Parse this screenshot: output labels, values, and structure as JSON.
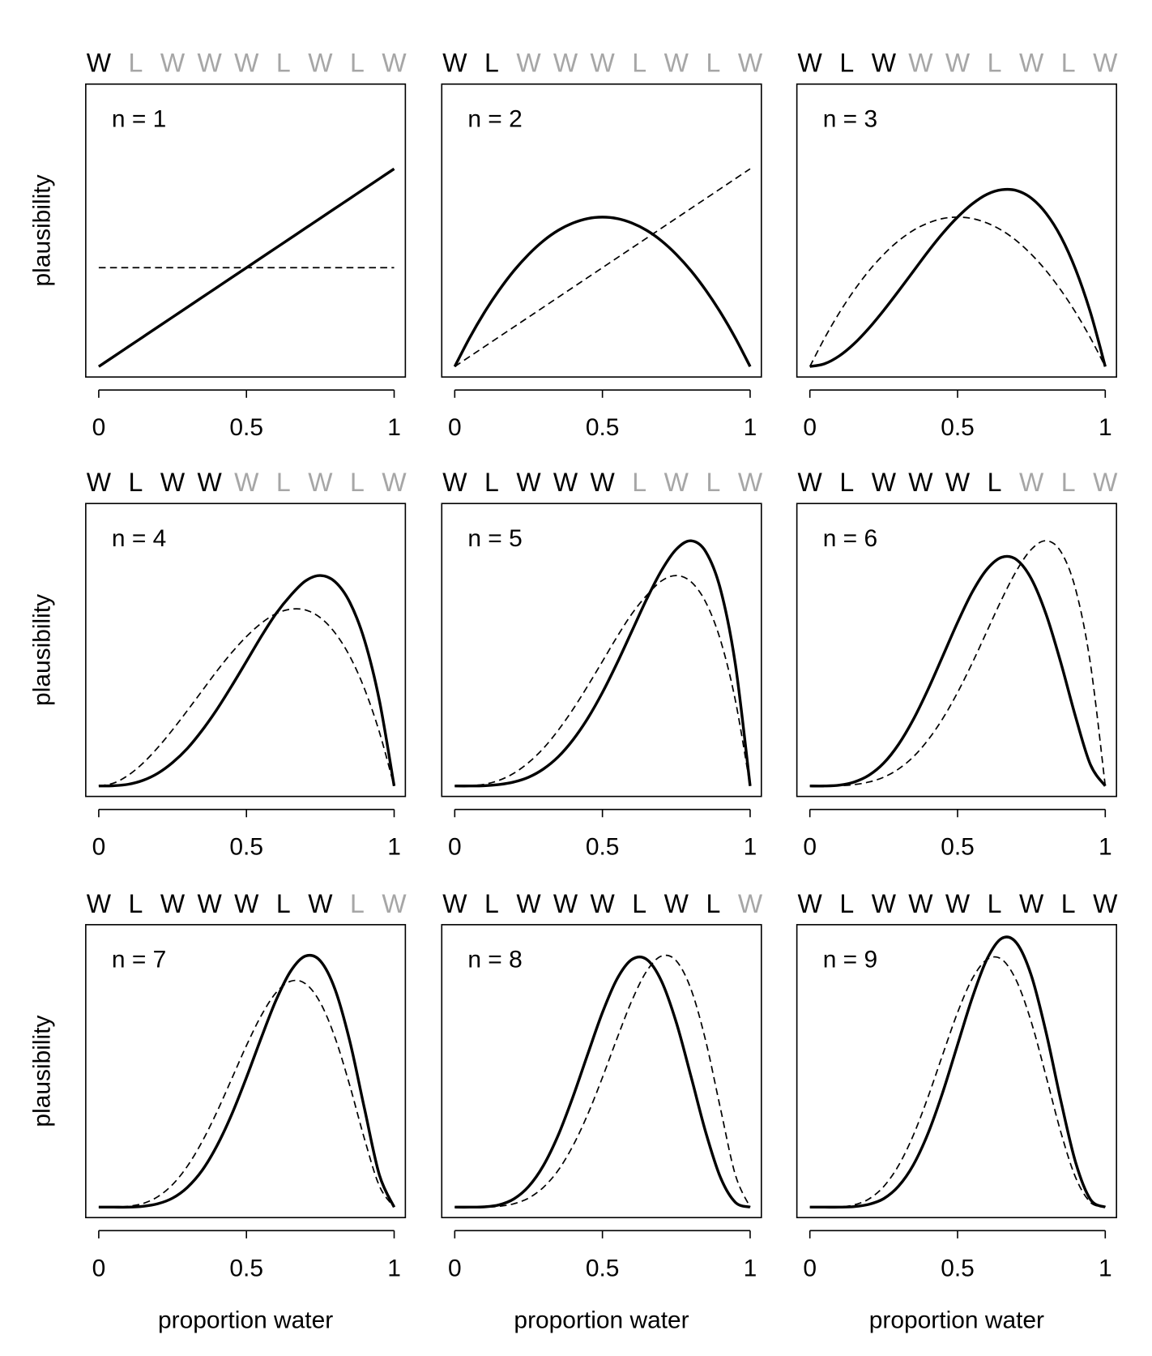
{
  "chart_data": [
    {
      "type": "line",
      "title": "n = 1",
      "ylabel": "plausibility",
      "sequence": [
        "W",
        "L",
        "W",
        "W",
        "W",
        "L",
        "W",
        "L",
        "W"
      ],
      "sequence_colors": [
        "#000000",
        "#a6a6a6",
        "#a6a6a6",
        "#a6a6a6",
        "#a6a6a6",
        "#a6a6a6",
        "#a6a6a6",
        "#a6a6a6",
        "#a6a6a6"
      ],
      "x": [
        0,
        0.05,
        0.1,
        0.15,
        0.2,
        0.25,
        0.3,
        0.35,
        0.4,
        0.45,
        0.5,
        0.55,
        0.6,
        0.65,
        0.7,
        0.75,
        0.8,
        0.85,
        0.9,
        0.95,
        1
      ],
      "xlim": [
        -0.044,
        1.038
      ],
      "xticks": [
        0,
        0.5,
        1
      ],
      "ylim": [
        -0.037,
        1.0
      ],
      "series": [
        {
          "color": "#000000",
          "style": "solid",
          "values": [
            0,
            0.035,
            0.07,
            0.105,
            0.14,
            0.175,
            0.21,
            0.245,
            0.28,
            0.315,
            0.35,
            0.385,
            0.42,
            0.455,
            0.49,
            0.525,
            0.56,
            0.595,
            0.63,
            0.665,
            0.7
          ]
        },
        {
          "color": "#000000",
          "style": "dashed",
          "values": [
            0.35,
            0.35,
            0.35,
            0.35,
            0.35,
            0.35,
            0.35,
            0.35,
            0.35,
            0.35,
            0.35,
            0.35,
            0.35,
            0.35,
            0.35,
            0.35,
            0.35,
            0.35,
            0.35,
            0.35,
            0.35
          ]
        }
      ]
    },
    {
      "type": "line",
      "title": "n = 2",
      "sequence": [
        "W",
        "L",
        "W",
        "W",
        "W",
        "L",
        "W",
        "L",
        "W"
      ],
      "sequence_colors": [
        "#000000",
        "#000000",
        "#a6a6a6",
        "#a6a6a6",
        "#a6a6a6",
        "#a6a6a6",
        "#a6a6a6",
        "#a6a6a6",
        "#a6a6a6"
      ],
      "x": [
        0,
        0.05,
        0.1,
        0.15,
        0.2,
        0.25,
        0.3,
        0.35,
        0.4,
        0.45,
        0.5,
        0.55,
        0.6,
        0.65,
        0.7,
        0.75,
        0.8,
        0.85,
        0.9,
        0.95,
        1
      ],
      "xlim": [
        -0.044,
        1.038
      ],
      "xticks": [
        0,
        0.5,
        1
      ],
      "ylim": [
        -0.037,
        1.0
      ],
      "series": [
        {
          "color": "#000000",
          "style": "solid",
          "values": [
            0,
            0.101,
            0.191,
            0.27,
            0.339,
            0.397,
            0.445,
            0.482,
            0.508,
            0.524,
            0.529,
            0.524,
            0.508,
            0.482,
            0.445,
            0.397,
            0.339,
            0.27,
            0.191,
            0.101,
            0
          ]
        },
        {
          "color": "#000000",
          "style": "dashed",
          "values": [
            0,
            0.035,
            0.07,
            0.105,
            0.14,
            0.175,
            0.21,
            0.245,
            0.28,
            0.315,
            0.35,
            0.385,
            0.42,
            0.455,
            0.49,
            0.525,
            0.56,
            0.595,
            0.63,
            0.665,
            0.7
          ]
        }
      ]
    },
    {
      "type": "line",
      "title": "n = 3",
      "sequence": [
        "W",
        "L",
        "W",
        "W",
        "W",
        "L",
        "W",
        "L",
        "W"
      ],
      "sequence_colors": [
        "#000000",
        "#000000",
        "#000000",
        "#a6a6a6",
        "#a6a6a6",
        "#a6a6a6",
        "#a6a6a6",
        "#a6a6a6",
        "#a6a6a6"
      ],
      "x": [
        0,
        0.05,
        0.1,
        0.15,
        0.2,
        0.25,
        0.3,
        0.35,
        0.4,
        0.45,
        0.5,
        0.55,
        0.6,
        0.65,
        0.7,
        0.75,
        0.8,
        0.85,
        0.9,
        0.95,
        1
      ],
      "xlim": [
        -0.044,
        1.038
      ],
      "xticks": [
        0,
        0.5,
        1
      ],
      "ylim": [
        -0.037,
        1.0
      ],
      "series": [
        {
          "color": "#000000",
          "style": "solid",
          "values": [
            0,
            0.01,
            0.038,
            0.081,
            0.136,
            0.199,
            0.267,
            0.337,
            0.407,
            0.472,
            0.529,
            0.576,
            0.61,
            0.626,
            0.623,
            0.596,
            0.542,
            0.459,
            0.343,
            0.191,
            0
          ]
        },
        {
          "color": "#000000",
          "style": "dashed",
          "values": [
            0,
            0.101,
            0.191,
            0.27,
            0.339,
            0.397,
            0.445,
            0.482,
            0.508,
            0.524,
            0.529,
            0.524,
            0.508,
            0.482,
            0.445,
            0.397,
            0.339,
            0.27,
            0.191,
            0.101,
            0
          ]
        }
      ]
    },
    {
      "type": "line",
      "title": "n = 4",
      "ylabel": "plausibility",
      "sequence": [
        "W",
        "L",
        "W",
        "W",
        "W",
        "L",
        "W",
        "L",
        "W"
      ],
      "sequence_colors": [
        "#000000",
        "#000000",
        "#000000",
        "#000000",
        "#a6a6a6",
        "#a6a6a6",
        "#a6a6a6",
        "#a6a6a6",
        "#a6a6a6"
      ],
      "x": [
        0,
        0.05,
        0.1,
        0.15,
        0.2,
        0.25,
        0.3,
        0.35,
        0.4,
        0.45,
        0.5,
        0.55,
        0.6,
        0.65,
        0.7,
        0.75,
        0.8,
        0.85,
        0.9,
        0.95,
        1
      ],
      "xlim": [
        -0.044,
        1.038
      ],
      "xticks": [
        0,
        0.5,
        1
      ],
      "ylim": [
        -0.037,
        1.0
      ],
      "series": [
        {
          "color": "#000000",
          "style": "solid",
          "values": [
            0,
            0.001,
            0.006,
            0.02,
            0.045,
            0.083,
            0.133,
            0.197,
            0.271,
            0.354,
            0.441,
            0.529,
            0.61,
            0.675,
            0.726,
            0.745,
            0.723,
            0.65,
            0.515,
            0.303,
            0
          ]
        },
        {
          "color": "#000000",
          "style": "dashed",
          "values": [
            0,
            0.01,
            0.038,
            0.081,
            0.136,
            0.199,
            0.267,
            0.337,
            0.407,
            0.472,
            0.529,
            0.576,
            0.61,
            0.626,
            0.623,
            0.596,
            0.542,
            0.459,
            0.343,
            0.191,
            0
          ]
        }
      ]
    },
    {
      "type": "line",
      "title": "n = 5",
      "sequence": [
        "W",
        "L",
        "W",
        "W",
        "W",
        "L",
        "W",
        "L",
        "W"
      ],
      "sequence_colors": [
        "#000000",
        "#000000",
        "#000000",
        "#000000",
        "#000000",
        "#a6a6a6",
        "#a6a6a6",
        "#a6a6a6",
        "#a6a6a6"
      ],
      "x": [
        0,
        0.05,
        0.1,
        0.15,
        0.2,
        0.25,
        0.3,
        0.35,
        0.4,
        0.45,
        0.5,
        0.55,
        0.6,
        0.65,
        0.7,
        0.75,
        0.8,
        0.85,
        0.9,
        0.95,
        1
      ],
      "xlim": [
        -0.044,
        1.038
      ],
      "xticks": [
        0,
        0.5,
        1
      ],
      "ylim": [
        -0.037,
        1.0
      ],
      "series": [
        {
          "color": "#000000",
          "style": "solid",
          "values": [
            0,
            0,
            0.001,
            0.005,
            0.014,
            0.031,
            0.06,
            0.103,
            0.163,
            0.239,
            0.331,
            0.436,
            0.549,
            0.662,
            0.763,
            0.838,
            0.868,
            0.829,
            0.695,
            0.431,
            0
          ]
        },
        {
          "color": "#000000",
          "style": "dashed",
          "values": [
            0,
            0.001,
            0.006,
            0.02,
            0.045,
            0.083,
            0.133,
            0.197,
            0.271,
            0.354,
            0.441,
            0.529,
            0.61,
            0.675,
            0.726,
            0.745,
            0.723,
            0.65,
            0.515,
            0.303,
            0
          ]
        }
      ]
    },
    {
      "type": "line",
      "title": "n = 6",
      "sequence": [
        "W",
        "L",
        "W",
        "W",
        "W",
        "L",
        "W",
        "L",
        "W"
      ],
      "sequence_colors": [
        "#000000",
        "#000000",
        "#000000",
        "#000000",
        "#000000",
        "#000000",
        "#a6a6a6",
        "#a6a6a6",
        "#a6a6a6"
      ],
      "x": [
        0,
        0.05,
        0.1,
        0.15,
        0.2,
        0.25,
        0.3,
        0.35,
        0.4,
        0.45,
        0.5,
        0.55,
        0.6,
        0.65,
        0.7,
        0.75,
        0.8,
        0.85,
        0.9,
        0.95,
        1
      ],
      "xlim": [
        -0.044,
        1.038
      ],
      "xticks": [
        0,
        0.5,
        1
      ],
      "ylim": [
        -0.037,
        1.0
      ],
      "series": [
        {
          "color": "#000000",
          "style": "solid",
          "values": [
            0,
            0,
            0.003,
            0.014,
            0.038,
            0.081,
            0.147,
            0.235,
            0.342,
            0.46,
            0.579,
            0.687,
            0.768,
            0.81,
            0.801,
            0.733,
            0.607,
            0.435,
            0.243,
            0.075,
            0
          ]
        },
        {
          "color": "#000000",
          "style": "dashed",
          "values": [
            0,
            0,
            0.001,
            0.005,
            0.014,
            0.031,
            0.06,
            0.103,
            0.163,
            0.239,
            0.331,
            0.436,
            0.549,
            0.662,
            0.763,
            0.838,
            0.868,
            0.829,
            0.695,
            0.431,
            0
          ]
        }
      ]
    },
    {
      "type": "line",
      "title": "n = 7",
      "ylabel": "plausibility",
      "xlabel": "proportion water",
      "sequence": [
        "W",
        "L",
        "W",
        "W",
        "W",
        "L",
        "W",
        "L",
        "W"
      ],
      "sequence_colors": [
        "#000000",
        "#000000",
        "#000000",
        "#000000",
        "#000000",
        "#000000",
        "#000000",
        "#a6a6a6",
        "#a6a6a6"
      ],
      "x": [
        0,
        0.05,
        0.1,
        0.15,
        0.2,
        0.25,
        0.3,
        0.35,
        0.4,
        0.45,
        0.5,
        0.55,
        0.6,
        0.65,
        0.7,
        0.75,
        0.8,
        0.85,
        0.9,
        0.95,
        1
      ],
      "xlim": [
        -0.044,
        1.038
      ],
      "xticks": [
        0,
        0.5,
        1
      ],
      "ylim": [
        -0.037,
        1.0
      ],
      "series": [
        {
          "color": "#000000",
          "style": "solid",
          "values": [
            0,
            0,
            0,
            0.003,
            0.012,
            0.032,
            0.07,
            0.13,
            0.217,
            0.328,
            0.459,
            0.599,
            0.732,
            0.836,
            0.889,
            0.872,
            0.771,
            0.587,
            0.347,
            0.114,
            0
          ]
        },
        {
          "color": "#000000",
          "style": "dashed",
          "values": [
            0,
            0,
            0.003,
            0.013,
            0.037,
            0.08,
            0.145,
            0.232,
            0.337,
            0.454,
            0.572,
            0.678,
            0.759,
            0.8,
            0.791,
            0.724,
            0.6,
            0.43,
            0.24,
            0.075,
            0
          ]
        }
      ]
    },
    {
      "type": "line",
      "title": "n = 8",
      "xlabel": "proportion water",
      "sequence": [
        "W",
        "L",
        "W",
        "W",
        "W",
        "L",
        "W",
        "L",
        "W"
      ],
      "sequence_colors": [
        "#000000",
        "#000000",
        "#000000",
        "#000000",
        "#000000",
        "#000000",
        "#000000",
        "#000000",
        "#a6a6a6"
      ],
      "x": [
        0,
        0.05,
        0.1,
        0.15,
        0.2,
        0.25,
        0.3,
        0.35,
        0.4,
        0.45,
        0.5,
        0.55,
        0.6,
        0.65,
        0.7,
        0.75,
        0.8,
        0.85,
        0.9,
        0.95,
        1
      ],
      "xlim": [
        -0.044,
        1.038
      ],
      "xticks": [
        0,
        0.5,
        1
      ],
      "ylim": [
        -0.037,
        1.0
      ],
      "series": [
        {
          "color": "#000000",
          "style": "solid",
          "values": [
            0,
            0,
            0.001,
            0.008,
            0.029,
            0.073,
            0.147,
            0.254,
            0.39,
            0.541,
            0.689,
            0.809,
            0.877,
            0.877,
            0.8,
            0.654,
            0.462,
            0.264,
            0.104,
            0.017,
            0
          ]
        },
        {
          "color": "#000000",
          "style": "dashed",
          "values": [
            0,
            0,
            0,
            0.003,
            0.012,
            0.032,
            0.07,
            0.13,
            0.217,
            0.328,
            0.459,
            0.599,
            0.732,
            0.836,
            0.889,
            0.872,
            0.771,
            0.587,
            0.347,
            0.114,
            0
          ]
        }
      ]
    },
    {
      "type": "line",
      "title": "n = 9",
      "xlabel": "proportion water",
      "sequence": [
        "W",
        "L",
        "W",
        "W",
        "W",
        "L",
        "W",
        "L",
        "W"
      ],
      "sequence_colors": [
        "#000000",
        "#000000",
        "#000000",
        "#000000",
        "#000000",
        "#000000",
        "#000000",
        "#000000",
        "#000000"
      ],
      "x": [
        0,
        0.05,
        0.1,
        0.15,
        0.2,
        0.25,
        0.3,
        0.35,
        0.4,
        0.45,
        0.5,
        0.55,
        0.6,
        0.65,
        0.7,
        0.75,
        0.8,
        0.85,
        0.9,
        0.95,
        1
      ],
      "xlim": [
        -0.044,
        1.038
      ],
      "xticks": [
        0,
        0.5,
        1
      ],
      "ylim": [
        -0.037,
        1.0
      ],
      "series": [
        {
          "color": "#000000",
          "style": "solid",
          "values": [
            0,
            0,
            0,
            0.002,
            0.01,
            0.03,
            0.074,
            0.149,
            0.261,
            0.407,
            0.575,
            0.742,
            0.879,
            0.952,
            0.935,
            0.819,
            0.617,
            0.375,
            0.157,
            0.027,
            0
          ]
        },
        {
          "color": "#000000",
          "style": "dashed",
          "values": [
            0,
            0,
            0.001,
            0.008,
            0.029,
            0.073,
            0.147,
            0.254,
            0.39,
            0.541,
            0.689,
            0.809,
            0.877,
            0.877,
            0.8,
            0.654,
            0.462,
            0.264,
            0.104,
            0.017,
            0
          ]
        }
      ]
    }
  ]
}
